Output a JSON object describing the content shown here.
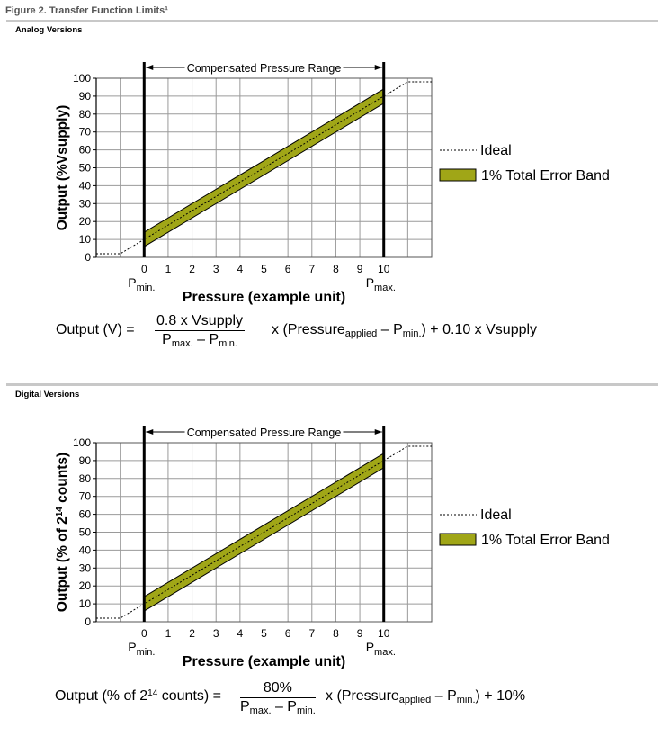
{
  "figure_title": "Figure 2. Transfer Function Limits¹",
  "sections": [
    {
      "label": "Analog Versions",
      "y_axis_label": "Output (%Vsupply)",
      "y_axis_label_sup": ""
    },
    {
      "label": "Digital Versions",
      "y_axis_label": "Output (% of 2",
      "y_axis_label_sup": "14",
      "y_axis_label_tail": " counts)"
    }
  ],
  "chart_common": {
    "range_label": "Compensated Pressure Range",
    "x_axis_label": "Pressure (example unit)",
    "pmin_main": "P",
    "pmin_sub": "min.",
    "pmax_main": "P",
    "pmax_sub": "max.",
    "legend_ideal": "Ideal",
    "legend_band": "1% Total Error Band",
    "band_color": "#a0a617",
    "grid_color": "#9a9a9a"
  },
  "chart_data": [
    {
      "type": "line",
      "x_ticks": [
        "0",
        "1",
        "2",
        "3",
        "4",
        "5",
        "6",
        "7",
        "8",
        "9",
        "10"
      ],
      "y_ticks": [
        "0",
        "10",
        "20",
        "30",
        "40",
        "50",
        "60",
        "70",
        "80",
        "90",
        "100"
      ],
      "xlim": [
        -2,
        12
      ],
      "ylim": [
        0,
        100
      ],
      "series": [
        {
          "name": "Ideal",
          "x": [
            -2,
            -1,
            0,
            10,
            11,
            12
          ],
          "y": [
            2,
            2,
            10,
            90,
            98,
            98
          ]
        },
        {
          "name": "1% Total Error Band",
          "x": [
            0,
            10
          ],
          "y_upper": [
            14,
            94
          ],
          "y_lower": [
            6,
            86
          ]
        }
      ],
      "legend": "right"
    },
    {
      "type": "line",
      "x_ticks": [
        "0",
        "1",
        "2",
        "3",
        "4",
        "5",
        "6",
        "7",
        "8",
        "9",
        "10"
      ],
      "y_ticks": [
        "0",
        "10",
        "20",
        "30",
        "40",
        "50",
        "60",
        "70",
        "80",
        "90",
        "100"
      ],
      "xlim": [
        -2,
        12
      ],
      "ylim": [
        0,
        100
      ],
      "series": [
        {
          "name": "Ideal",
          "x": [
            -2,
            -1,
            0,
            10,
            11,
            12
          ],
          "y": [
            2,
            2,
            10,
            90,
            98,
            98
          ]
        },
        {
          "name": "1% Total Error Band",
          "x": [
            0,
            10
          ],
          "y_upper": [
            14,
            94
          ],
          "y_lower": [
            6,
            86
          ]
        }
      ],
      "legend": "right"
    }
  ],
  "equations": {
    "analog": {
      "lhs": "Output (V) =",
      "num": "0.8 x Vsupply",
      "den_p": "P",
      "den_max": "max.",
      "den_minus": " – P",
      "den_min": "min.",
      "rhs1": "x (Pressure",
      "rhs_sub_applied": "applied",
      "rhs2": " – P",
      "rhs_sub_min": "min.",
      "rhs3": ") + 0.10 x Vsupply"
    },
    "digital": {
      "lhs1": "Output (% of 2",
      "lhs_sup": "14",
      "lhs2": " counts) =",
      "num": "80%",
      "den_p": "P",
      "den_max": "max.",
      "den_minus": " – P",
      "den_min": "min.",
      "rhs1": "x (Pressure",
      "rhs_sub_applied": "applied",
      "rhs2": " – P",
      "rhs_sub_min": "min.",
      "rhs3": ") + 10%"
    }
  }
}
